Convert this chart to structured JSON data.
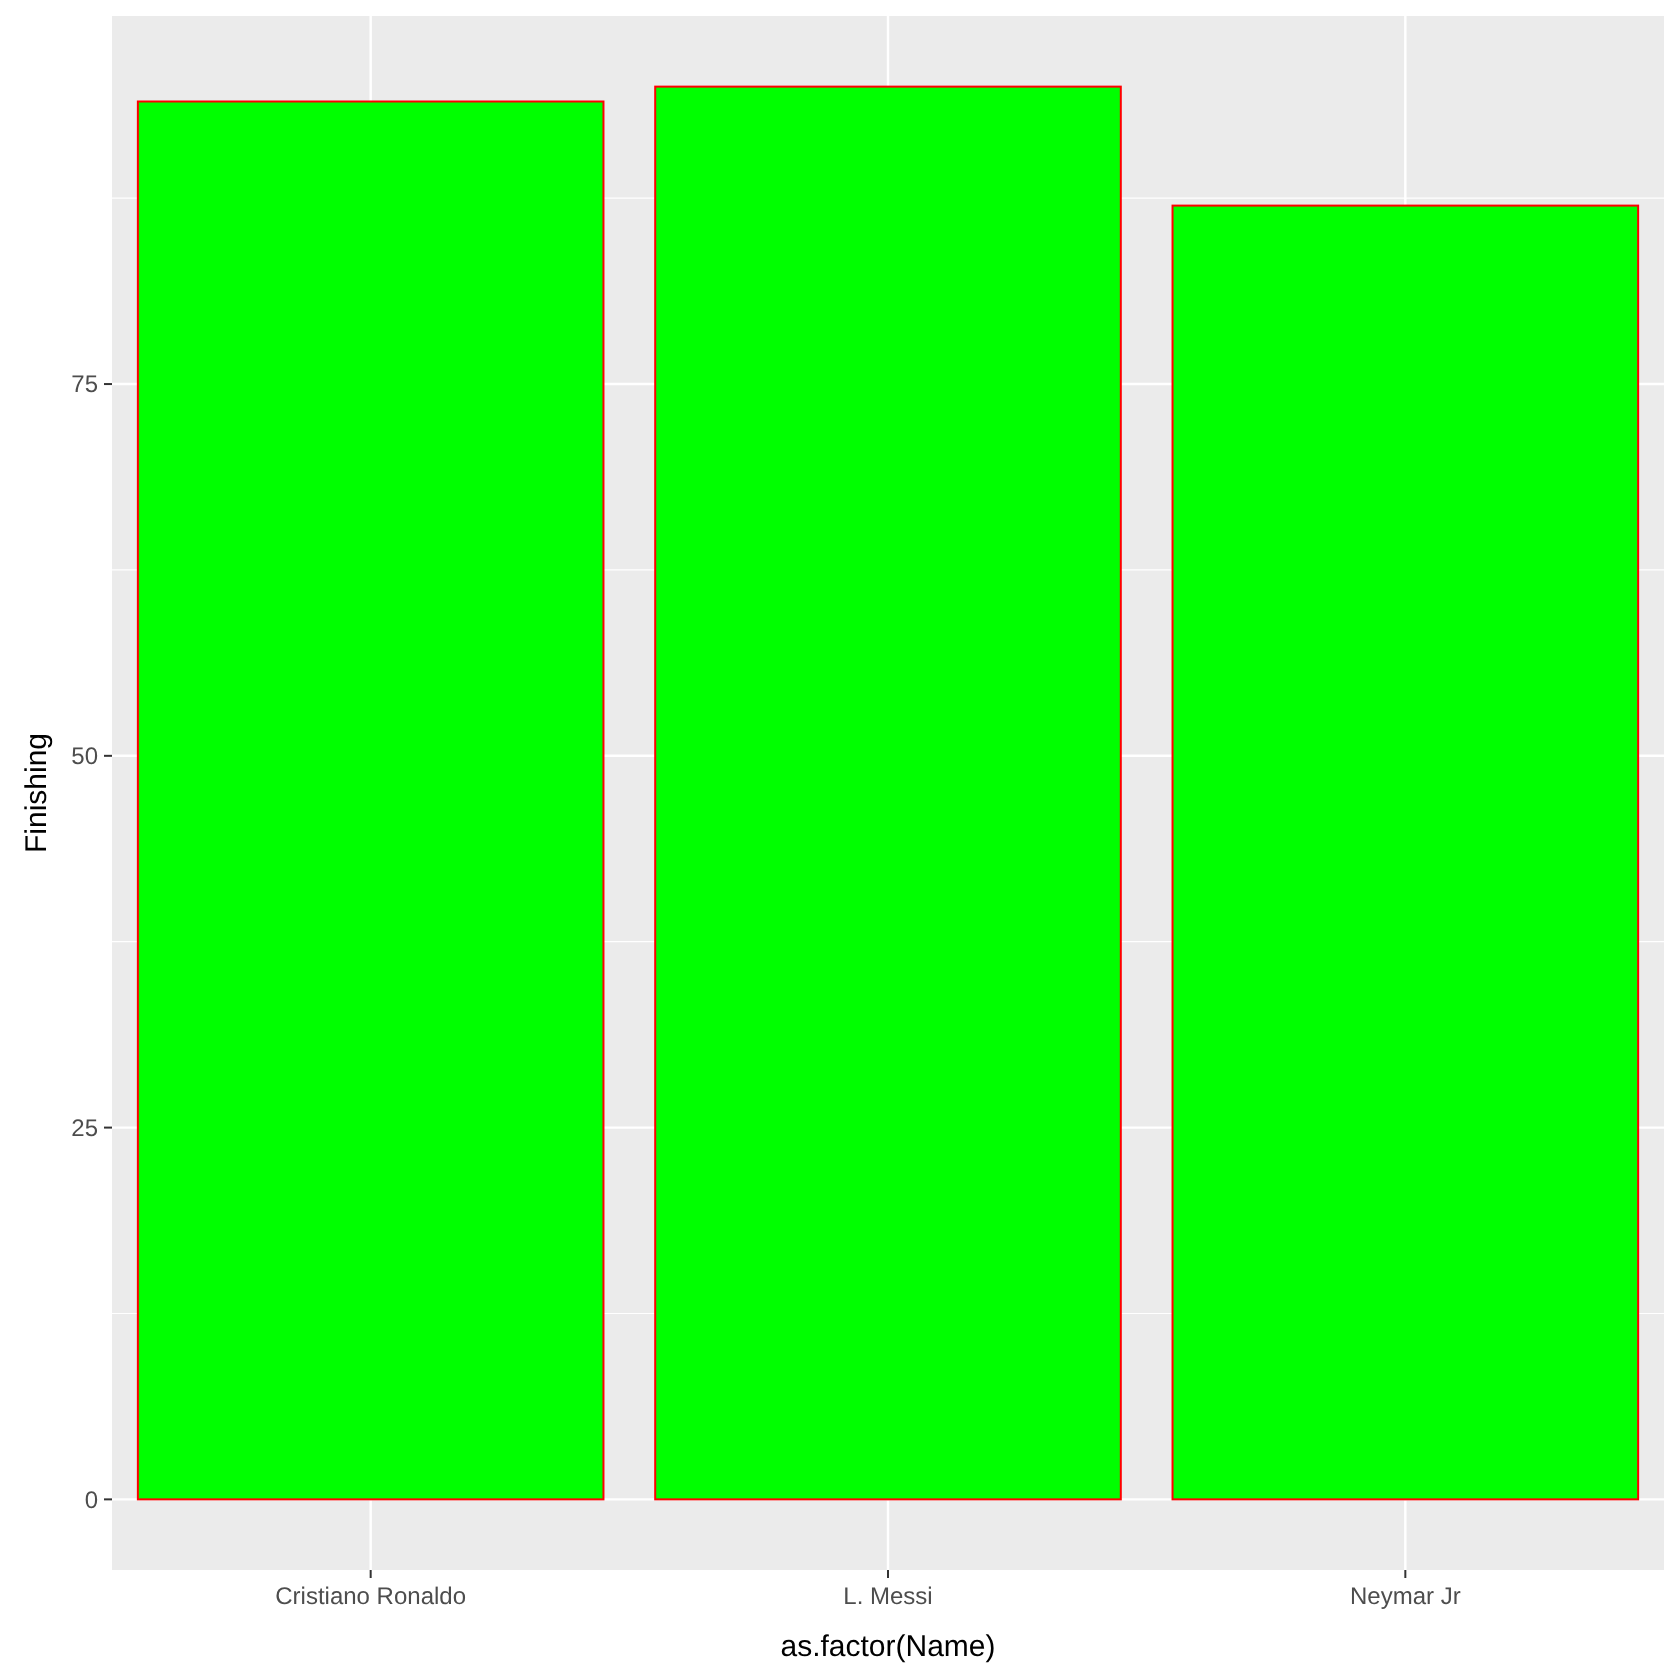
{
  "chart_data": {
    "type": "bar",
    "xlabel": "as.factor(Name)",
    "ylabel": "Finishing",
    "categories": [
      "Cristiano Ronaldo",
      "L. Messi",
      "Neymar Jr"
    ],
    "values": [
      94,
      95,
      87
    ],
    "color": "#00ff00",
    "ylim": [
      -4.75,
      99.75
    ],
    "yticks": [
      0,
      25,
      50,
      75
    ],
    "grid": true
  }
}
